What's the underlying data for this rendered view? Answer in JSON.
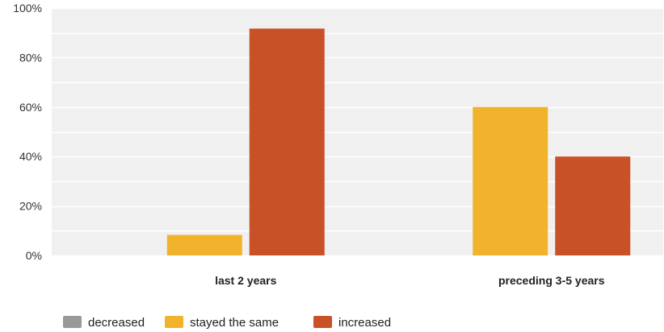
{
  "chart_data": {
    "type": "bar",
    "title": "",
    "xlabel": "",
    "ylabel": "",
    "categories": [
      "last 2 years",
      "preceding 3-5 years"
    ],
    "series": [
      {
        "name": "decreased",
        "color": "#999999",
        "values": [
          0,
          0
        ]
      },
      {
        "name": "stayed the same",
        "color": "#f2b32c",
        "values": [
          8.3,
          60
        ]
      },
      {
        "name": "increased",
        "color": "#c85128",
        "values": [
          91.7,
          40
        ]
      }
    ],
    "ylim": [
      0,
      100
    ],
    "yticks": [
      "0%",
      "20%",
      "40%",
      "60%",
      "80%",
      "100%"
    ],
    "ytick_values": [
      0,
      20,
      40,
      60,
      80,
      100
    ],
    "grid": true,
    "legend_position": "bottom-left"
  }
}
